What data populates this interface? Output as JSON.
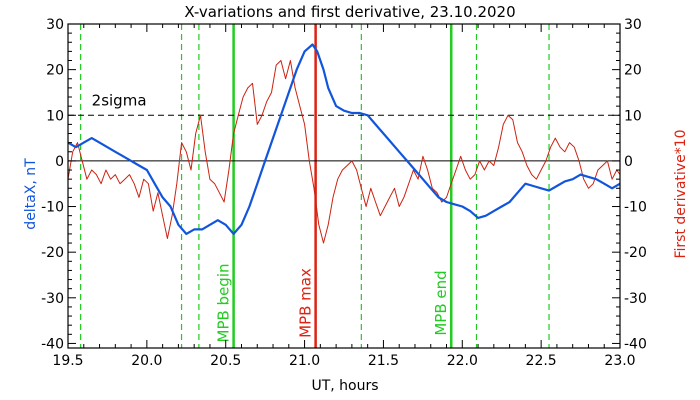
{
  "chart_data": {
    "type": "line",
    "title": "X-variations and first derivative, 23.10.2020",
    "xlabel": "UT, hours",
    "ylabel_left": "deltaX, nT",
    "ylabel_right": "First derivative*10",
    "xlim": [
      19.5,
      23.0
    ],
    "ylim": [
      -41,
      30
    ],
    "xticks": [
      19.5,
      20.0,
      20.5,
      21.0,
      21.5,
      22.0,
      22.5,
      23.0
    ],
    "xtick_labels": [
      "19.5",
      "20.0",
      "20.5",
      "21.0",
      "21.5",
      "22.0",
      "22.5",
      "23.0"
    ],
    "yticks": [
      -40,
      -30,
      -20,
      -10,
      0,
      10,
      20,
      30
    ],
    "ytick_labels": [
      "-40",
      "-30",
      "-20",
      "-10",
      "0",
      "10",
      "20",
      "30"
    ],
    "grid": false,
    "threshold": {
      "y": 10,
      "label": "2sigma"
    },
    "zero_line": 0,
    "vertical_lines": [
      {
        "x": 19.58,
        "style": "dashed",
        "color": "#22cc22"
      },
      {
        "x": 20.22,
        "style": "dashed",
        "color": "#22cc22"
      },
      {
        "x": 20.33,
        "style": "dashed",
        "color": "#22cc22"
      },
      {
        "x": 20.55,
        "style": "solid",
        "color": "#22cc22",
        "label": "MPB begin"
      },
      {
        "x": 21.07,
        "style": "solid",
        "color": "#dd2211",
        "label": "MPB max"
      },
      {
        "x": 21.36,
        "style": "dashed",
        "color": "#22cc22"
      },
      {
        "x": 21.93,
        "style": "solid",
        "color": "#22cc22",
        "label": "MPB end"
      },
      {
        "x": 22.09,
        "style": "dashed",
        "color": "#22cc22"
      },
      {
        "x": 22.55,
        "style": "dashed",
        "color": "#22cc22"
      }
    ],
    "series": [
      {
        "name": "deltaX, nT",
        "color": "#1155dd",
        "x": [
          19.5,
          19.55,
          19.6,
          19.65,
          19.7,
          19.75,
          19.8,
          19.85,
          19.9,
          19.95,
          20.0,
          20.05,
          20.1,
          20.15,
          20.2,
          20.25,
          20.3,
          20.35,
          20.4,
          20.45,
          20.5,
          20.55,
          20.6,
          20.65,
          20.7,
          20.75,
          20.8,
          20.85,
          20.9,
          20.95,
          21.0,
          21.05,
          21.08,
          21.12,
          21.15,
          21.2,
          21.25,
          21.3,
          21.35,
          21.4,
          21.45,
          21.5,
          21.55,
          21.6,
          21.65,
          21.7,
          21.75,
          21.8,
          21.85,
          21.9,
          21.95,
          22.0,
          22.05,
          22.1,
          22.15,
          22.2,
          22.25,
          22.3,
          22.35,
          22.4,
          22.45,
          22.5,
          22.55,
          22.6,
          22.65,
          22.7,
          22.75,
          22.8,
          22.85,
          22.9,
          22.95,
          23.0
        ],
        "values": [
          4,
          3,
          4,
          5,
          4,
          3,
          2,
          1,
          0,
          -1,
          -2,
          -5,
          -8,
          -10,
          -14,
          -16,
          -15,
          -15,
          -14,
          -13,
          -14,
          -16,
          -14,
          -10,
          -5,
          0,
          5,
          10,
          15,
          20,
          24,
          25.5,
          24,
          20,
          16,
          12,
          11,
          10.5,
          10.5,
          10,
          8,
          6,
          4,
          2,
          0,
          -2,
          -4,
          -6,
          -8,
          -9,
          -9.5,
          -10,
          -11,
          -12.5,
          -12,
          -11,
          -10,
          -9,
          -7,
          -5,
          -5.5,
          -6,
          -6.5,
          -5.5,
          -4.5,
          -4,
          -3,
          -3.5,
          -4,
          -5,
          -6,
          -5
        ]
      },
      {
        "name": "First derivative*10",
        "color": "#cc2211",
        "x": [
          19.5,
          19.53,
          19.56,
          19.59,
          19.62,
          19.65,
          19.68,
          19.71,
          19.74,
          19.77,
          19.8,
          19.83,
          19.86,
          19.89,
          19.92,
          19.95,
          19.98,
          20.01,
          20.04,
          20.07,
          20.1,
          20.13,
          20.16,
          20.19,
          20.22,
          20.25,
          20.28,
          20.31,
          20.34,
          20.37,
          20.4,
          20.43,
          20.46,
          20.49,
          20.52,
          20.55,
          20.58,
          20.61,
          20.64,
          20.67,
          20.7,
          20.73,
          20.76,
          20.79,
          20.82,
          20.85,
          20.88,
          20.91,
          20.94,
          20.97,
          21.0,
          21.03,
          21.06,
          21.09,
          21.12,
          21.15,
          21.18,
          21.21,
          21.24,
          21.27,
          21.3,
          21.33,
          21.36,
          21.39,
          21.42,
          21.45,
          21.48,
          21.51,
          21.54,
          21.57,
          21.6,
          21.63,
          21.66,
          21.69,
          21.72,
          21.75,
          21.78,
          21.81,
          21.84,
          21.87,
          21.9,
          21.93,
          21.96,
          21.99,
          22.02,
          22.05,
          22.08,
          22.11,
          22.14,
          22.17,
          22.2,
          22.23,
          22.26,
          22.29,
          22.32,
          22.35,
          22.38,
          22.41,
          22.44,
          22.47,
          22.5,
          22.53,
          22.56,
          22.59,
          22.62,
          22.65,
          22.68,
          22.71,
          22.74,
          22.77,
          22.8,
          22.83,
          22.86,
          22.89,
          22.92,
          22.95,
          22.98,
          23.0
        ],
        "values": [
          -4,
          2,
          4,
          0,
          -4,
          -2,
          -3,
          -5,
          -2,
          -4,
          -3,
          -5,
          -4,
          -3,
          -5,
          -8,
          -4,
          -5,
          -11,
          -7,
          -12,
          -17,
          -12,
          -5,
          4,
          2,
          -2,
          6,
          10,
          2,
          -4,
          -5,
          -7,
          -9,
          -2,
          6,
          10,
          14,
          16,
          17,
          8,
          10,
          13,
          15,
          21,
          22,
          18,
          22,
          16,
          12,
          8,
          0,
          -6,
          -14,
          -18,
          -14,
          -8,
          -4,
          -2,
          -1,
          0,
          -2,
          -6,
          -10,
          -6,
          -9,
          -12,
          -10,
          -8,
          -6,
          -10,
          -8,
          -5,
          -2,
          -4,
          1,
          -2,
          -6,
          -7,
          -9,
          -8,
          -5,
          -2,
          1,
          -2,
          -4,
          -3,
          0,
          -2,
          0,
          -1,
          3,
          8,
          10,
          9,
          4,
          2,
          -1,
          -3,
          -4,
          -2,
          0,
          3,
          5,
          3,
          2,
          4,
          3,
          0,
          -4,
          -6,
          -5,
          -2,
          -1,
          0,
          -4,
          -2,
          -3
        ]
      }
    ]
  }
}
